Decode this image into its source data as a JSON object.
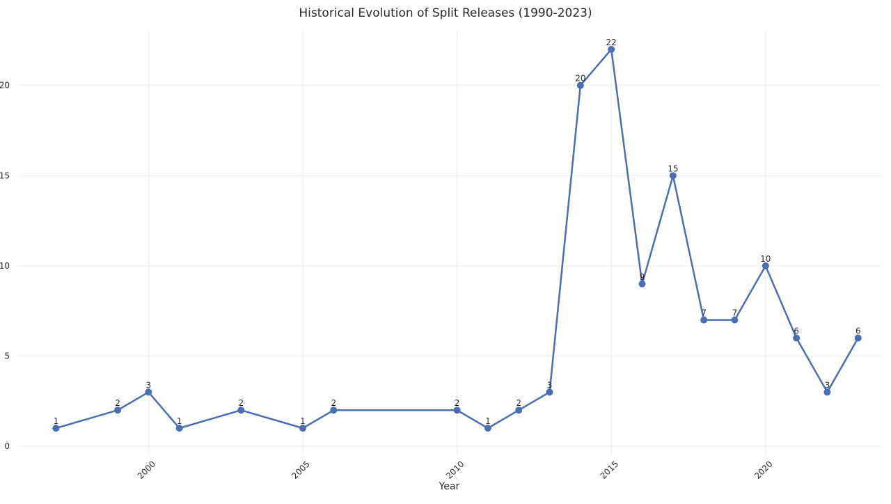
{
  "chart_data": {
    "type": "line",
    "title": "Historical Evolution of Split Releases (1990-2023)",
    "xlabel": "Year",
    "ylabel": "",
    "xlim": [
      1995.75,
      2023.75
    ],
    "ylim": [
      -0.5,
      23
    ],
    "x_ticks": [
      2000,
      2005,
      2010,
      2015,
      2020
    ],
    "y_ticks": [
      0,
      5,
      10,
      15,
      20
    ],
    "grid": true,
    "legend": "none",
    "series": [
      {
        "x": [
          1997,
          1999,
          2000,
          2001,
          2003,
          2005,
          2006,
          2010,
          2011,
          2012,
          2013,
          2014,
          2015,
          2016,
          2017,
          2018,
          2019,
          2020,
          2021,
          2022,
          2023
        ],
        "values": [
          1,
          2,
          3,
          1,
          2,
          1,
          2,
          2,
          1,
          2,
          3,
          20,
          22,
          9,
          15,
          7,
          7,
          10,
          6,
          3,
          6
        ],
        "color": "#4a6fb0"
      }
    ],
    "colors": {
      "line": "#4a6fb0",
      "grid": "#ebebeb",
      "text": "#2a2a2a"
    }
  }
}
